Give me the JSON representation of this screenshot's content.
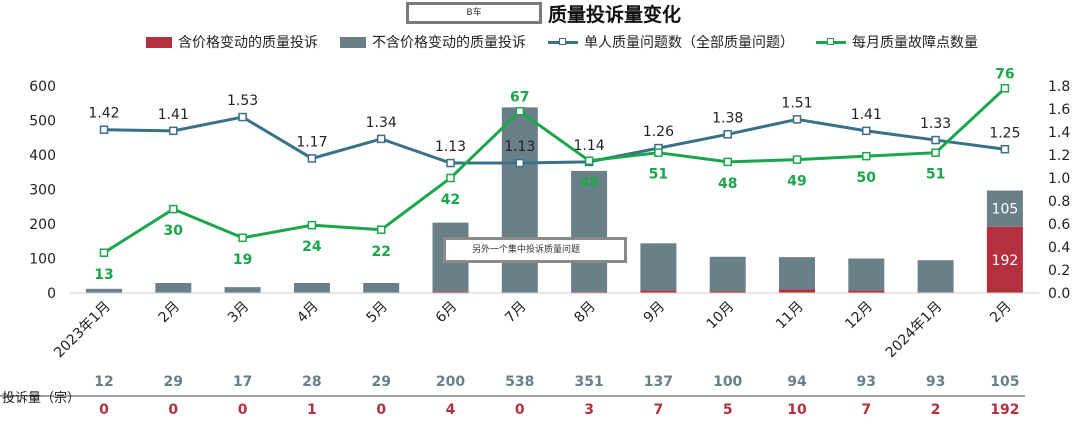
{
  "title_badge": "B车",
  "title": "质量投诉量变化",
  "legend": {
    "series1": "含价格变动的质量投诉",
    "series2": "不含价格变动的质量投诉",
    "series3": "单人质量问题数（全部质量问题）",
    "series4": "每月质量故障点数量"
  },
  "colors": {
    "price": "#b5303f",
    "nonprice": "#6a8089",
    "per_person": "#3b7089",
    "monthly": "#1aa64a"
  },
  "note": "另外一个集中投诉质量问题",
  "table_label": "投诉量（宗）",
  "chart_data": {
    "type": "bar",
    "categories": [
      "2023年1月",
      "2月",
      "3月",
      "4月",
      "5月",
      "6月",
      "7月",
      "8月",
      "9月",
      "10月",
      "11月",
      "12月",
      "2024年1月",
      "2月"
    ],
    "series": [
      {
        "name": "含价格变动的质量投诉",
        "kind": "bar",
        "axis": "left",
        "values": [
          0,
          0,
          0,
          1,
          0,
          4,
          0,
          3,
          7,
          5,
          10,
          7,
          2,
          192
        ]
      },
      {
        "name": "不含价格变动的质量投诉",
        "kind": "bar",
        "axis": "left",
        "values": [
          12,
          29,
          17,
          28,
          29,
          200,
          538,
          351,
          137,
          100,
          94,
          93,
          93,
          105
        ]
      },
      {
        "name": "单人质量问题数（全部质量问题）",
        "kind": "line",
        "axis": "right",
        "values": [
          1.42,
          1.41,
          1.53,
          1.17,
          1.34,
          1.13,
          1.13,
          1.14,
          1.26,
          1.38,
          1.51,
          1.41,
          1.33,
          1.25
        ]
      },
      {
        "name": "每月质量故障点数量",
        "kind": "line",
        "axis": "right",
        "values": [
          13,
          30,
          19,
          24,
          22,
          42,
          67,
          48,
          51,
          48,
          49,
          50,
          51,
          76
        ],
        "plotted": [
          0.35,
          0.73,
          0.48,
          0.59,
          0.55,
          1.0,
          1.58,
          1.15,
          1.22,
          1.14,
          1.16,
          1.19,
          1.22,
          1.78
        ]
      }
    ],
    "ylim_left": [
      0,
      600
    ],
    "yticks_left": [
      "0",
      "100",
      "200",
      "300",
      "400",
      "500",
      "600"
    ],
    "ylim_right": [
      0,
      1.8
    ],
    "yticks_right": [
      "0.0",
      "0.2",
      "0.4",
      "0.6",
      "0.8",
      "1.0",
      "1.2",
      "1.4",
      "1.6",
      "1.8"
    ],
    "table_rows": [
      [
        "12",
        "29",
        "17",
        "28",
        "29",
        "200",
        "538",
        "351",
        "137",
        "100",
        "94",
        "93",
        "93",
        "105"
      ],
      [
        "0",
        "0",
        "0",
        "1",
        "0",
        "4",
        "0",
        "3",
        "7",
        "5",
        "10",
        "7",
        "2",
        "192"
      ]
    ],
    "grid": false,
    "legend_position": "top"
  }
}
